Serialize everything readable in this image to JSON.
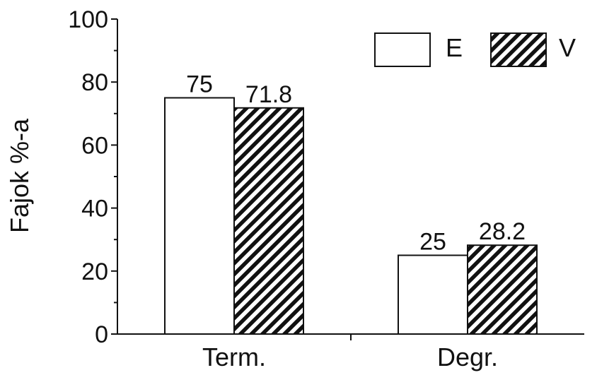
{
  "chart_data": {
    "type": "bar",
    "title": "",
    "xlabel": "",
    "ylabel": "Fajok %-a",
    "ylim": [
      0,
      100
    ],
    "yticks": [
      0,
      20,
      40,
      60,
      80,
      100
    ],
    "categories": [
      "Term.",
      "Degr."
    ],
    "series": [
      {
        "name": "E",
        "values": [
          75,
          25
        ],
        "data_labels": [
          "75",
          "25"
        ],
        "fill": "white"
      },
      {
        "name": "V",
        "values": [
          71.8,
          28.2
        ],
        "data_labels": [
          "71.8",
          "28.2"
        ],
        "fill": "diagonal-hatch"
      }
    ],
    "legend_position": "top-right",
    "grid": false,
    "colors": {
      "stroke": "#111111",
      "background": "#ffffff",
      "hatch": "#111111"
    }
  }
}
